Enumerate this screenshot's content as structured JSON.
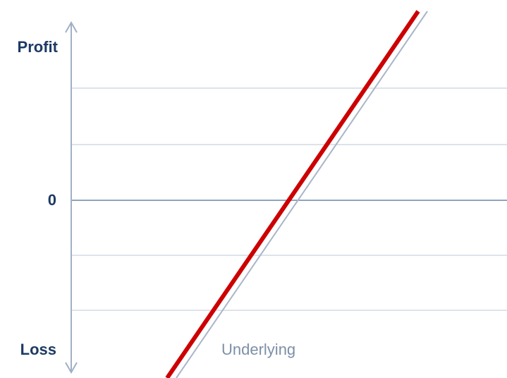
{
  "axis": {
    "top_label": "Profit",
    "zero_label": "0",
    "bottom_label": "Loss"
  },
  "curves": {
    "underlying_label": "Underlying"
  }
}
